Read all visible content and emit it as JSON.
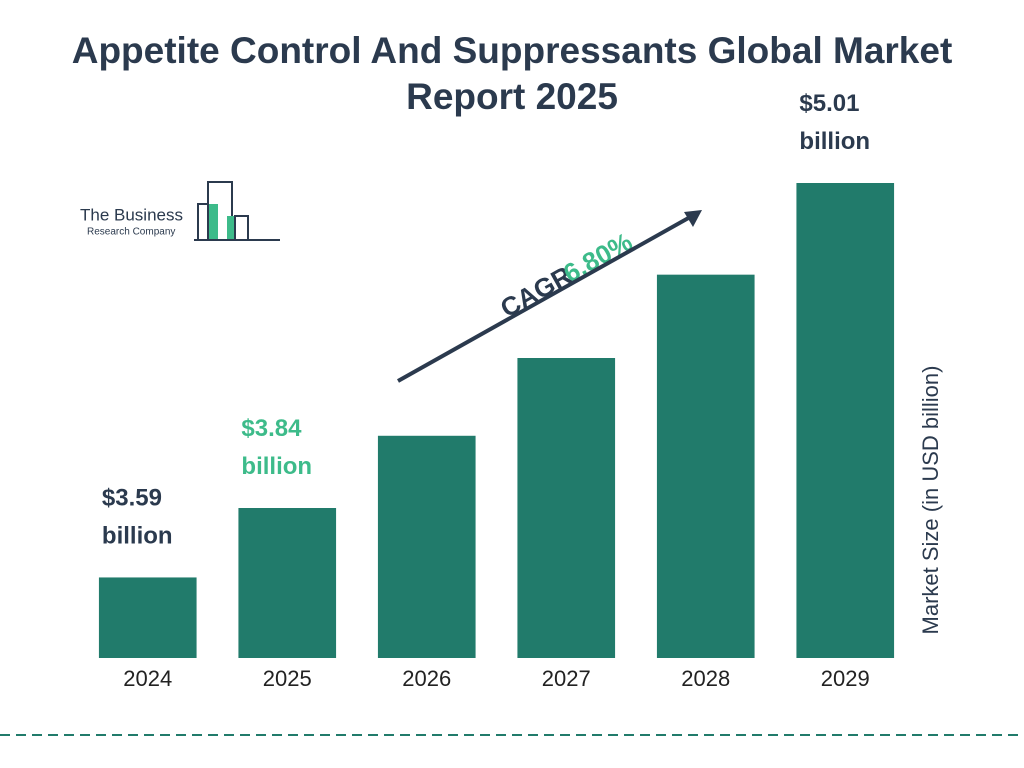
{
  "chart_data": {
    "type": "bar",
    "title": "Appetite Control And Suppressants Global Market Report 2025",
    "categories": [
      "2024",
      "2025",
      "2026",
      "2027",
      "2028",
      "2029"
    ],
    "values": [
      3.59,
      3.84,
      4.1,
      4.38,
      4.68,
      5.01
    ],
    "value_labels": [
      "$3.59 billion",
      "$3.84 billion",
      null,
      null,
      null,
      "$5.01 billion"
    ],
    "value_label_colors": [
      "#2b3a4e",
      "#3dbb8a",
      null,
      null,
      null,
      "#2b3a4e"
    ],
    "color": "#217b6b",
    "ylim": [
      3.3,
      5.1
    ],
    "y_axis_label": "Market Size (in USD billion)",
    "annotations": {
      "cagr_label": "CAGR",
      "cagr_value": "6.80%"
    },
    "grid": false
  },
  "logo": {
    "line1": "The Business",
    "line2": "Research Company"
  }
}
